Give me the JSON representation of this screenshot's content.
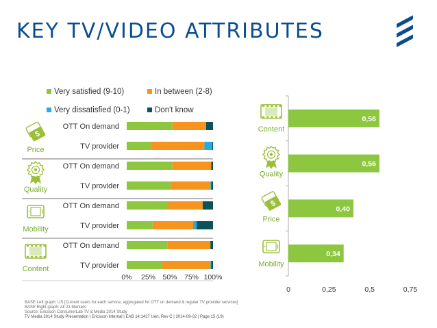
{
  "title": "KEY TV/VIDEO ATTRIBUTES",
  "logo": {
    "name": "company-logo",
    "color": "#0a4d8f"
  },
  "colors": {
    "very_satisfied": "#8dc63f",
    "in_between": "#f7941d",
    "very_dissatisfied": "#29abe2",
    "dont_know": "#0d5257",
    "bar_right": "#8dc63f",
    "icon": "#9bbf3b",
    "label_green": "#7aab2e",
    "text": "#333333",
    "axis": "#666666",
    "grid": "#d0d0d0"
  },
  "chart_data": [
    {
      "type": "bar",
      "stacked": true,
      "orientation": "horizontal",
      "legend": [
        {
          "key": "very_satisfied",
          "label": "Very satisfied (9-10)"
        },
        {
          "key": "in_between",
          "label": "In between (2-8)"
        },
        {
          "key": "very_dissatisfied",
          "label": "Very dissatisfied (0-1)"
        },
        {
          "key": "dont_know",
          "label": "Don't know"
        }
      ],
      "groups": [
        {
          "label": "Price",
          "icon": "price-tag-icon",
          "rows": [
            {
              "label": "OTT On demand",
              "values": [
                53,
                39,
                0,
                8
              ]
            },
            {
              "label": "TV provider",
              "values": [
                28,
                62,
                9,
                1
              ]
            }
          ]
        },
        {
          "label": "Quality",
          "icon": "quality-ribbon-icon",
          "rows": [
            {
              "label": "OTT On demand",
              "values": [
                53,
                45,
                0,
                2
              ]
            },
            {
              "label": "TV provider",
              "values": [
                51,
                46,
                1,
                2
              ]
            }
          ]
        },
        {
          "label": "Mobility",
          "icon": "mobile-device-icon",
          "rows": [
            {
              "label": "OTT On demand",
              "values": [
                48,
                40,
                0,
                12
              ]
            },
            {
              "label": "TV provider",
              "values": [
                30,
                47,
                4,
                19
              ]
            }
          ]
        },
        {
          "label": "Content",
          "icon": "film-strip-icon",
          "rows": [
            {
              "label": "OTT On demand",
              "values": [
                47,
                50,
                0,
                3
              ]
            },
            {
              "label": "TV provider",
              "values": [
                41,
                56,
                1,
                2
              ]
            }
          ]
        }
      ],
      "xlim": [
        0,
        100
      ],
      "ticks": [
        "0%",
        "25%",
        "50%",
        "75%",
        "100%"
      ]
    },
    {
      "type": "bar",
      "orientation": "horizontal",
      "categories": [
        "Content",
        "Quality",
        "Price",
        "Mobility"
      ],
      "icons": [
        "film-strip-icon",
        "quality-ribbon-icon",
        "price-tag-icon",
        "mobile-device-icon"
      ],
      "values": [
        0.56,
        0.56,
        0.4,
        0.34
      ],
      "value_labels": [
        "0,56",
        "0,56",
        "0,40",
        "0,34"
      ],
      "xlim": [
        0,
        0.75
      ],
      "ticks": [
        0,
        0.25,
        0.5,
        0.75
      ],
      "tick_labels": [
        "0",
        "0,25",
        "0,5",
        "0,75"
      ]
    }
  ],
  "footer": {
    "base_left": "BASE Left graph: US [Current users for each service, aggregated for OTT on demand & regular TV provider services]",
    "base_right": "BASE Right graph: All 23 Markets",
    "source": "Source: Ericsson ConsumerLab TV & Media 2014 Study",
    "meta": "TV Media 2014 Study Presentation  |  Ericsson Internal  |  EAB 14:1427 Uen, Rev C  |  2014-09-02  |  Page 15 (19)"
  }
}
